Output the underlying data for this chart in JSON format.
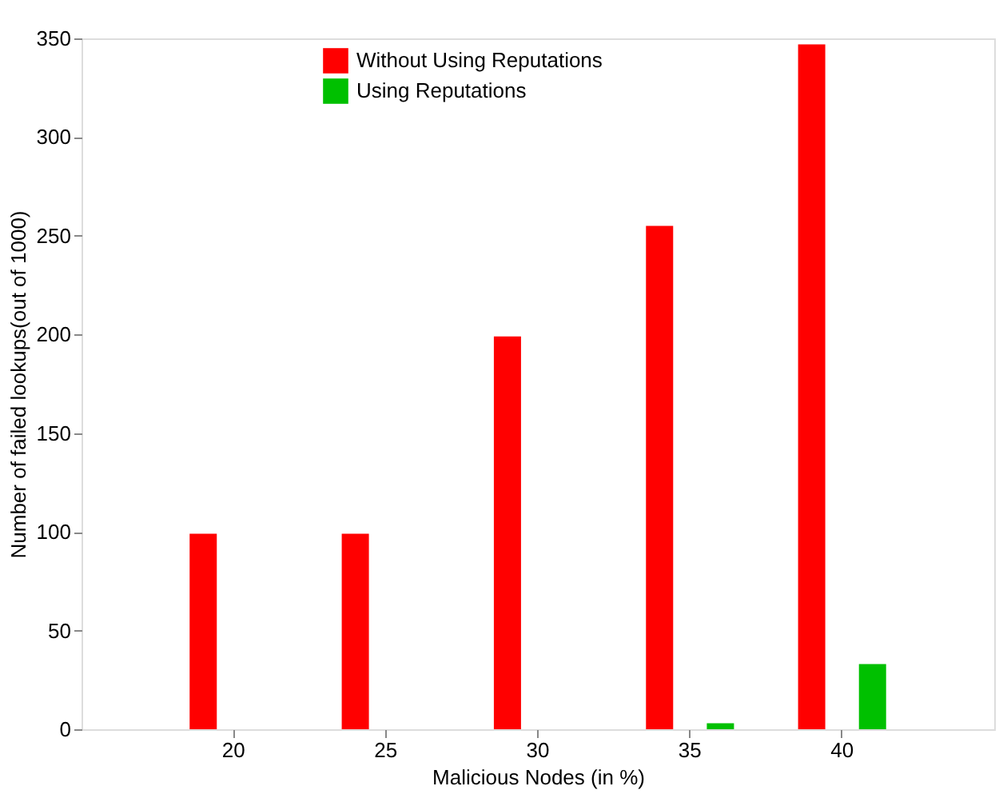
{
  "chart_data": {
    "type": "bar",
    "xlabel": "Malicious Nodes (in %)",
    "ylabel": "Number of failed lookups(out of 1000)",
    "categories": [
      "20",
      "25",
      "30",
      "35",
      "40"
    ],
    "series": [
      {
        "name": "Without Using Reputations",
        "color": "#ff0000",
        "values": [
          99,
          99,
          199,
          255,
          347
        ]
      },
      {
        "name": "Using Reputations",
        "color": "#00c000",
        "values": [
          0,
          0,
          0,
          3,
          33
        ]
      }
    ],
    "ylim": [
      0,
      350
    ],
    "yticks": [
      0,
      50,
      100,
      150,
      200,
      250,
      300,
      350
    ],
    "grid": false,
    "legend": "top"
  }
}
